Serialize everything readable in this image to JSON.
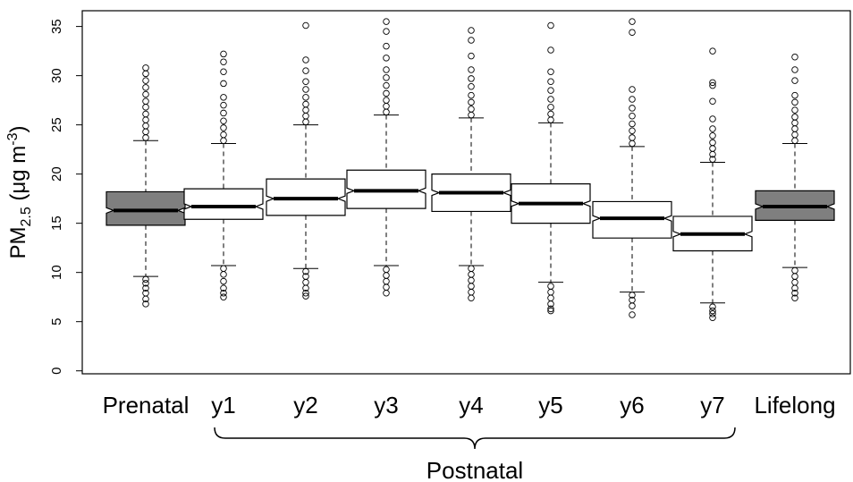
{
  "chart_data": {
    "type": "boxplot",
    "y_label": [
      "PM",
      "2.5",
      " (μg m",
      "-3",
      ")"
    ],
    "categories": [
      "Prenatal",
      "y1",
      "y2",
      "y3",
      "y4",
      "y5",
      "y6",
      "y7",
      "Lifelong"
    ],
    "group_label": "Postnatal",
    "ylim": [
      -0.3,
      36.6
    ],
    "yticks": [
      0,
      5,
      10,
      15,
      20,
      25,
      30,
      35
    ],
    "boxes": [
      {
        "color": "#7f7f7f",
        "low": 9.6,
        "q1": 14.8,
        "median": 16.3,
        "q3": 18.2,
        "high": 23.4,
        "outliers": [
          23.7,
          24.3,
          24.9,
          25.5,
          26.1,
          26.8,
          27.4,
          28.1,
          28.8,
          29.5,
          30.2,
          30.8,
          9.3,
          8.9,
          8.4,
          7.9,
          7.3,
          6.8
        ]
      },
      {
        "color": "#ffffff",
        "low": 10.7,
        "q1": 15.4,
        "median": 16.7,
        "q3": 18.5,
        "high": 23.1,
        "outliers": [
          23.4,
          24.0,
          24.7,
          25.4,
          26.2,
          27.0,
          27.8,
          29.2,
          30.4,
          31.4,
          32.2,
          10.4,
          9.8,
          9.1,
          8.4,
          7.9,
          7.5
        ]
      },
      {
        "color": "#ffffff",
        "low": 10.4,
        "q1": 15.8,
        "median": 17.5,
        "q3": 19.5,
        "high": 25.0,
        "outliers": [
          25.3,
          25.9,
          26.5,
          27.1,
          27.8,
          28.6,
          29.4,
          30.5,
          31.6,
          35.1,
          10.1,
          9.6,
          9.0,
          8.4,
          7.9,
          7.6
        ]
      },
      {
        "color": "#ffffff",
        "low": 10.7,
        "q1": 16.5,
        "median": 18.3,
        "q3": 20.4,
        "high": 26.0,
        "outliers": [
          26.3,
          26.9,
          27.5,
          28.2,
          29.0,
          29.8,
          30.6,
          31.8,
          33.0,
          34.5,
          35.5,
          10.3,
          9.7,
          9.1,
          8.5,
          7.9
        ]
      },
      {
        "color": "#ffffff",
        "low": 10.7,
        "q1": 16.2,
        "median": 18.1,
        "q3": 20.0,
        "high": 25.7,
        "outliers": [
          26.0,
          26.6,
          27.3,
          28.0,
          28.9,
          29.7,
          30.6,
          32.0,
          33.6,
          34.6,
          10.4,
          9.8,
          9.2,
          8.6,
          8.0,
          7.4
        ]
      },
      {
        "color": "#ffffff",
        "low": 9.0,
        "q1": 15.0,
        "median": 17.0,
        "q3": 19.0,
        "high": 25.2,
        "outliers": [
          25.5,
          26.1,
          26.8,
          27.6,
          28.5,
          29.4,
          30.4,
          32.6,
          35.1,
          8.6,
          8.0,
          7.4,
          6.8,
          6.3,
          6.1
        ]
      },
      {
        "color": "#ffffff",
        "low": 8.0,
        "q1": 13.5,
        "median": 15.5,
        "q3": 17.2,
        "high": 22.8,
        "outliers": [
          23.1,
          23.7,
          24.4,
          25.1,
          25.9,
          26.7,
          27.6,
          28.6,
          34.4,
          35.5,
          7.7,
          7.2,
          6.6,
          5.7
        ]
      },
      {
        "color": "#ffffff",
        "low": 6.9,
        "q1": 12.2,
        "median": 13.9,
        "q3": 15.7,
        "high": 21.2,
        "outliers": [
          21.5,
          22.0,
          22.6,
          23.2,
          23.9,
          24.6,
          25.6,
          27.4,
          29.0,
          29.3,
          32.5,
          6.5,
          6.1,
          5.8,
          5.4
        ]
      },
      {
        "color": "#7f7f7f",
        "low": 10.5,
        "q1": 15.3,
        "median": 16.7,
        "q3": 18.3,
        "high": 23.1,
        "outliers": [
          23.4,
          24.0,
          24.6,
          25.2,
          25.8,
          26.5,
          27.3,
          28.0,
          29.5,
          30.6,
          31.9,
          10.2,
          9.6,
          9.0,
          8.4,
          7.9,
          7.4
        ]
      }
    ]
  }
}
